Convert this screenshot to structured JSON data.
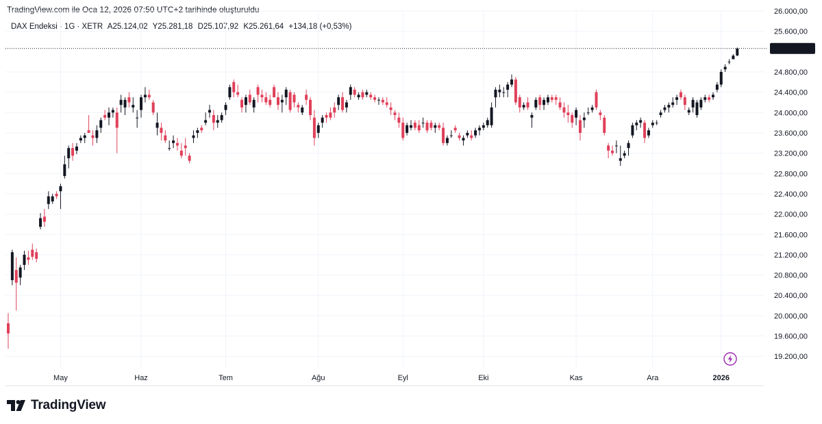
{
  "header": {
    "note": "TradingView.com ile Oca 12, 2026 07:50 UTC+2 tarihinde oluşturuldu"
  },
  "legend": {
    "symbol": "DAX Endeksi · 1G · XETR",
    "open_label": "A",
    "open": "25.124,02",
    "high_label": "Y",
    "high": "25.281,18",
    "low_label": "D",
    "low": "25.107,92",
    "close_label": "K",
    "close": "25.261,64",
    "change": "+134,18 (+0,53%)"
  },
  "footer": {
    "brand": "TradingView"
  },
  "colors": {
    "up": "#131722",
    "down": "#e0405a",
    "grid": "#f0f3fa",
    "price_label_bg": "#131722",
    "lightning": "#9c27b0"
  },
  "icons": {
    "lightning": "lightning-icon",
    "logo": "tradingview-logo-icon"
  },
  "chart_data": {
    "type": "candlestick",
    "symbol": "DAX Endeksi",
    "timeframe": "1G",
    "exchange": "XETR",
    "last_price_label": "25.261,64",
    "ylim": [
      18960,
      26000
    ],
    "y_ticks": [
      {
        "value": 26000,
        "label": "26.000,00"
      },
      {
        "value": 25600,
        "label": "25.600,00"
      },
      {
        "value": 24800,
        "label": "24.800,00"
      },
      {
        "value": 24400,
        "label": "24.400,00"
      },
      {
        "value": 24000,
        "label": "24.000,00"
      },
      {
        "value": 23600,
        "label": "23.600,00"
      },
      {
        "value": 23200,
        "label": "23.200,00"
      },
      {
        "value": 22800,
        "label": "22.800,00"
      },
      {
        "value": 22400,
        "label": "22.400,00"
      },
      {
        "value": 22000,
        "label": "22.000,00"
      },
      {
        "value": 21600,
        "label": "21.600,00"
      },
      {
        "value": 21200,
        "label": "21.200,00"
      },
      {
        "value": 20800,
        "label": "20.800,00"
      },
      {
        "value": 20400,
        "label": "20.400,00"
      },
      {
        "value": 20000,
        "label": "20.000,00"
      },
      {
        "value": 19600,
        "label": "19.600,00"
      },
      {
        "value": 19200,
        "label": "19.200,00"
      }
    ],
    "x_ticks": [
      {
        "index": 13,
        "label": "May"
      },
      {
        "index": 33,
        "label": "Haz"
      },
      {
        "index": 54,
        "label": "Tem"
      },
      {
        "index": 77,
        "label": "Ağu"
      },
      {
        "index": 98,
        "label": "Eyl"
      },
      {
        "index": 118,
        "label": "Eki"
      },
      {
        "index": 141,
        "label": "Kas"
      },
      {
        "index": 160,
        "label": "Ara"
      },
      {
        "index": 177,
        "label": "2026"
      }
    ],
    "grid": true,
    "candles": [
      [
        19850,
        20050,
        19350,
        19650
      ],
      [
        20700,
        21300,
        20600,
        21250
      ],
      [
        20900,
        21150,
        20100,
        20650
      ],
      [
        20750,
        21000,
        20600,
        20950
      ],
      [
        21000,
        21280,
        20900,
        21200
      ],
      [
        21150,
        21280,
        21000,
        21100
      ],
      [
        21300,
        21420,
        21100,
        21160
      ],
      [
        21250,
        21320,
        21050,
        21120
      ],
      [
        21750,
        22020,
        21700,
        21920
      ],
      [
        21950,
        22100,
        21750,
        21850
      ],
      [
        22200,
        22450,
        22100,
        22350
      ],
      [
        22250,
        22400,
        22200,
        22350
      ],
      [
        22400,
        22450,
        22300,
        22350
      ],
      [
        22450,
        22600,
        22100,
        22550
      ],
      [
        22750,
        23150,
        22700,
        22980
      ],
      [
        23100,
        23350,
        22900,
        23300
      ],
      [
        23300,
        23400,
        23050,
        23150
      ],
      [
        23250,
        23400,
        23180,
        23330
      ],
      [
        23450,
        23550,
        23400,
        23500
      ],
      [
        23500,
        23600,
        23400,
        23550
      ],
      [
        23650,
        23950,
        23600,
        23600
      ],
      [
        23550,
        23650,
        23350,
        23500
      ],
      [
        23500,
        23750,
        23400,
        23650
      ],
      [
        23700,
        23900,
        23600,
        23850
      ],
      [
        23950,
        24050,
        23850,
        23900
      ],
      [
        23900,
        24100,
        23750,
        24000
      ],
      [
        24000,
        24100,
        23900,
        24050
      ],
      [
        24000,
        24100,
        23200,
        23700
      ],
      [
        24150,
        24350,
        24000,
        24250
      ],
      [
        24100,
        24300,
        23950,
        24250
      ],
      [
        24300,
        24400,
        24100,
        24200
      ],
      [
        24100,
        24300,
        24000,
        24150
      ],
      [
        23900,
        24050,
        23700,
        23900
      ],
      [
        24050,
        24350,
        23900,
        24300
      ],
      [
        24300,
        24500,
        24200,
        24350
      ],
      [
        24350,
        24450,
        24250,
        24300
      ],
      [
        24200,
        24250,
        23950,
        24000
      ],
      [
        23700,
        24000,
        23550,
        23800
      ],
      [
        23700,
        23800,
        23450,
        23600
      ],
      [
        23550,
        23650,
        23400,
        23450
      ],
      [
        23300,
        23450,
        23250,
        23300
      ],
      [
        23400,
        23550,
        23300,
        23450
      ],
      [
        23400,
        23500,
        23250,
        23350
      ],
      [
        23250,
        23400,
        23100,
        23150
      ],
      [
        23350,
        23500,
        23150,
        23300
      ],
      [
        23150,
        23200,
        23000,
        23050
      ],
      [
        23500,
        23650,
        23400,
        23550
      ],
      [
        23600,
        23700,
        23500,
        23650
      ],
      [
        23700,
        23750,
        23600,
        23650
      ],
      [
        23800,
        24000,
        23750,
        23850
      ],
      [
        24000,
        24150,
        23900,
        24050
      ],
      [
        23950,
        24050,
        23650,
        23800
      ],
      [
        23800,
        23950,
        23700,
        23850
      ],
      [
        23850,
        24000,
        23800,
        23950
      ],
      [
        24050,
        24200,
        23950,
        24150
      ],
      [
        24300,
        24550,
        24250,
        24500
      ],
      [
        24600,
        24650,
        24300,
        24400
      ],
      [
        24400,
        24550,
        24300,
        24350
      ],
      [
        24250,
        24300,
        24000,
        24100
      ],
      [
        24150,
        24350,
        24000,
        24300
      ],
      [
        24350,
        24450,
        24150,
        24200
      ],
      [
        24100,
        24300,
        24000,
        24250
      ],
      [
        24500,
        24550,
        24200,
        24350
      ],
      [
        24350,
        24450,
        24200,
        24300
      ],
      [
        24300,
        24400,
        24150,
        24200
      ],
      [
        24250,
        24350,
        24100,
        24150
      ],
      [
        24500,
        24550,
        24300,
        24300
      ],
      [
        24300,
        24400,
        24050,
        24150
      ],
      [
        24200,
        24350,
        24000,
        24250
      ],
      [
        24300,
        24500,
        24150,
        24450
      ],
      [
        24400,
        24450,
        24000,
        24050
      ],
      [
        24350,
        24400,
        24100,
        24200
      ],
      [
        24150,
        24200,
        24000,
        24100
      ],
      [
        24000,
        24150,
        23950,
        24100
      ],
      [
        24350,
        24450,
        24150,
        24250
      ],
      [
        24250,
        24300,
        23850,
        23950
      ],
      [
        23900,
        24050,
        23350,
        23500
      ],
      [
        23600,
        23800,
        23500,
        23750
      ],
      [
        23800,
        23950,
        23700,
        23900
      ],
      [
        23950,
        24000,
        23800,
        23900
      ],
      [
        24000,
        24100,
        23850,
        23900
      ],
      [
        24100,
        24200,
        23900,
        24000
      ],
      [
        24150,
        24350,
        24050,
        24300
      ],
      [
        24300,
        24400,
        24000,
        24050
      ],
      [
        24100,
        24250,
        24000,
        24200
      ],
      [
        24350,
        24550,
        24250,
        24500
      ],
      [
        24450,
        24500,
        24300,
        24350
      ],
      [
        24300,
        24400,
        24250,
        24350
      ],
      [
        24400,
        24450,
        24250,
        24300
      ],
      [
        24350,
        24450,
        24300,
        24400
      ],
      [
        24350,
        24400,
        24250,
        24300
      ],
      [
        24300,
        24350,
        24200,
        24250
      ],
      [
        24250,
        24300,
        24150,
        24250
      ],
      [
        24250,
        24300,
        24150,
        24200
      ],
      [
        24200,
        24300,
        24100,
        24150
      ],
      [
        24100,
        24200,
        23950,
        24050
      ],
      [
        24000,
        24050,
        23850,
        23950
      ],
      [
        23900,
        24000,
        23700,
        23800
      ],
      [
        23800,
        23900,
        23450,
        23500
      ],
      [
        23600,
        23800,
        23550,
        23750
      ],
      [
        23700,
        23850,
        23650,
        23750
      ],
      [
        23800,
        23850,
        23650,
        23700
      ],
      [
        23750,
        23850,
        23600,
        23650
      ],
      [
        23800,
        23900,
        23700,
        23800
      ],
      [
        23800,
        23850,
        23600,
        23650
      ],
      [
        23800,
        23850,
        23650,
        23700
      ],
      [
        23700,
        23800,
        23600,
        23750
      ],
      [
        23750,
        23800,
        23650,
        23700
      ],
      [
        23700,
        23800,
        23350,
        23400
      ],
      [
        23400,
        23550,
        23350,
        23500
      ],
      [
        23550,
        23650,
        23500,
        23550
      ],
      [
        23700,
        23750,
        23600,
        23650
      ],
      [
        23550,
        23600,
        23450,
        23500
      ],
      [
        23450,
        23550,
        23350,
        23500
      ],
      [
        23550,
        23650,
        23500,
        23600
      ],
      [
        23550,
        23650,
        23450,
        23500
      ],
      [
        23550,
        23700,
        23500,
        23650
      ],
      [
        23650,
        23750,
        23550,
        23700
      ],
      [
        23700,
        23800,
        23650,
        23750
      ],
      [
        23750,
        23900,
        23700,
        23850
      ],
      [
        23750,
        24200,
        23700,
        24100
      ],
      [
        24300,
        24500,
        24100,
        24450
      ],
      [
        24400,
        24550,
        24300,
        24450
      ],
      [
        24400,
        24500,
        24300,
        24400
      ],
      [
        24450,
        24600,
        24300,
        24550
      ],
      [
        24550,
        24750,
        24500,
        24650
      ],
      [
        24650,
        24700,
        24150,
        24200
      ],
      [
        24300,
        24350,
        24000,
        24100
      ],
      [
        24100,
        24200,
        24050,
        24150
      ],
      [
        24200,
        24300,
        24050,
        24100
      ],
      [
        23900,
        24000,
        23700,
        23950
      ],
      [
        24100,
        24300,
        24050,
        24250
      ],
      [
        24300,
        24350,
        24050,
        24150
      ],
      [
        24150,
        24300,
        24050,
        24250
      ],
      [
        24200,
        24350,
        24150,
        24300
      ],
      [
        24300,
        24350,
        24200,
        24250
      ],
      [
        24300,
        24350,
        24150,
        24250
      ],
      [
        24200,
        24300,
        24050,
        24100
      ],
      [
        24100,
        24200,
        23900,
        24000
      ],
      [
        24000,
        24150,
        23800,
        23950
      ],
      [
        23950,
        24000,
        23700,
        23800
      ],
      [
        23900,
        24100,
        23750,
        24050
      ],
      [
        23850,
        23950,
        23450,
        23600
      ],
      [
        23850,
        24000,
        23700,
        23900
      ],
      [
        24000,
        24100,
        23950,
        24000
      ],
      [
        24050,
        24150,
        24000,
        24100
      ],
      [
        24400,
        24450,
        24050,
        24100
      ],
      [
        24000,
        24050,
        23850,
        23950
      ],
      [
        23900,
        23950,
        23550,
        23600
      ],
      [
        23350,
        23400,
        23100,
        23250
      ],
      [
        23250,
        23350,
        23150,
        23200
      ],
      [
        23350,
        23450,
        23200,
        23350
      ],
      [
        23050,
        23350,
        22950,
        23100
      ],
      [
        23150,
        23250,
        23100,
        23200
      ],
      [
        23300,
        23450,
        23150,
        23400
      ],
      [
        23550,
        23800,
        23500,
        23750
      ],
      [
        23750,
        23850,
        23650,
        23800
      ],
      [
        23800,
        23900,
        23700,
        23850
      ],
      [
        23800,
        23850,
        23400,
        23500
      ],
      [
        23550,
        23700,
        23500,
        23650
      ],
      [
        23750,
        23850,
        23700,
        23800
      ],
      [
        23800,
        23850,
        23750,
        23800
      ],
      [
        23950,
        24050,
        23900,
        24000
      ],
      [
        24050,
        24150,
        24000,
        24100
      ],
      [
        24100,
        24200,
        24000,
        24150
      ],
      [
        24150,
        24300,
        24100,
        24200
      ],
      [
        24250,
        24350,
        24150,
        24300
      ],
      [
        24400,
        24450,
        24250,
        24300
      ],
      [
        24300,
        24350,
        24050,
        24150
      ],
      [
        24000,
        24100,
        23950,
        24050
      ],
      [
        24100,
        24300,
        24000,
        24250
      ],
      [
        23950,
        24250,
        23900,
        24200
      ],
      [
        24100,
        24300,
        24050,
        24250
      ],
      [
        24250,
        24350,
        24200,
        24300
      ],
      [
        24300,
        24350,
        24200,
        24250
      ],
      [
        24300,
        24400,
        24250,
        24350
      ],
      [
        24450,
        24600,
        24400,
        24550
      ],
      [
        24550,
        24850,
        24500,
        24800
      ],
      [
        24850,
        24950,
        24800,
        24900
      ],
      [
        25000,
        25050,
        24950,
        25000
      ],
      [
        25050,
        25150,
        25050,
        25120
      ],
      [
        25124,
        25281,
        25108,
        25262
      ]
    ]
  }
}
